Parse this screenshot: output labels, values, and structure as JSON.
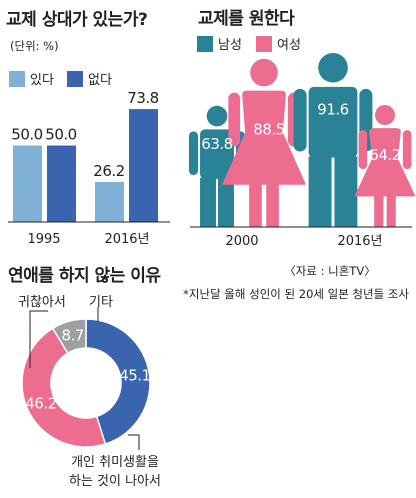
{
  "colors": {
    "light_blue": "#7fb0d5",
    "dark_blue": "#3a64ae",
    "teal": "#2a8297",
    "pink": "#ec6d8f",
    "gray": "#9d9fa1",
    "text": "#231f20"
  },
  "chart_data": [
    {
      "type": "bar",
      "title": "교제 상대가 있는가?",
      "unit": "(단위: %)",
      "categories": [
        "1995",
        "2016년"
      ],
      "series": [
        {
          "name": "있다",
          "values": [
            50.0,
            26.2
          ]
        },
        {
          "name": "없다",
          "values": [
            50.0,
            73.8
          ]
        }
      ],
      "value_labels": [
        [
          "50.0",
          "26.2"
        ],
        [
          "50.0",
          "73.8"
        ]
      ],
      "ylim": [
        0,
        100
      ]
    },
    {
      "type": "bar",
      "title": "교제를 원한다",
      "categories": [
        "2000",
        "2016년"
      ],
      "series": [
        {
          "name": "남성",
          "values": [
            63.8,
            91.6
          ]
        },
        {
          "name": "여성",
          "values": [
            88.5,
            64.2
          ]
        }
      ],
      "value_labels": [
        [
          "63.8",
          "91.6"
        ],
        [
          "88.5",
          "64.2"
        ]
      ],
      "ylim": [
        0,
        100
      ]
    },
    {
      "type": "pie",
      "title": "연애를 하지 않는 이유",
      "slices": [
        {
          "label": "개인 취미생활을 하는 것이 나아서",
          "label_lines": [
            "개인 취미생활을",
            "하는 것이 나아서"
          ],
          "value": 45.1,
          "value_label": "45.1"
        },
        {
          "label": "귀찮아서",
          "label_lines": [
            "귀찮아서"
          ],
          "value": 46.2,
          "value_label": "46.2"
        },
        {
          "label": "기타",
          "label_lines": [
            "기타"
          ],
          "value": 8.7,
          "value_label": "8.7"
        }
      ]
    }
  ],
  "source": "〈자료 : 니혼TV〉",
  "note": "*지난달 올해 성인이 된 20세 일본 청년들 조사"
}
